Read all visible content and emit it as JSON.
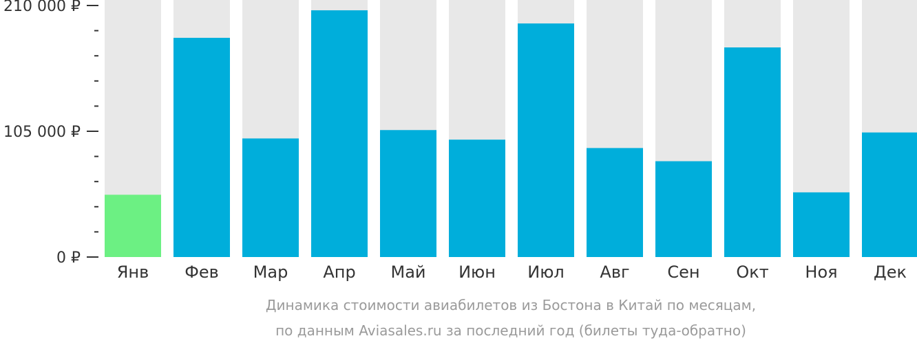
{
  "chart_data": {
    "type": "bar",
    "categories": [
      "Янв",
      "Фев",
      "Мар",
      "Апр",
      "Май",
      "Июн",
      "Июл",
      "Авг",
      "Сен",
      "Окт",
      "Ноя",
      "Дек"
    ],
    "values": [
      52000,
      183000,
      99000,
      206000,
      106000,
      98000,
      195000,
      91000,
      80000,
      175000,
      54000,
      104000
    ],
    "ylim": [
      0,
      210000
    ],
    "ytick_labels": [
      "0 ₽",
      "105 000 ₽",
      "210 000 ₽"
    ],
    "ytick_values": [
      0,
      105000,
      210000
    ],
    "highlight_index": 0,
    "colors": {
      "bar": "#00aedb",
      "highlight": "#6cf083",
      "background_track": "#e8e8e8",
      "text": "#333333",
      "caption": "#9a9a9a"
    },
    "caption_line1": "Динамика стоимости авиабилетов из Бостона в Китай по месяцам,",
    "caption_line2": "по данным Aviasales.ru за последний год (билеты туда-обратно)"
  }
}
